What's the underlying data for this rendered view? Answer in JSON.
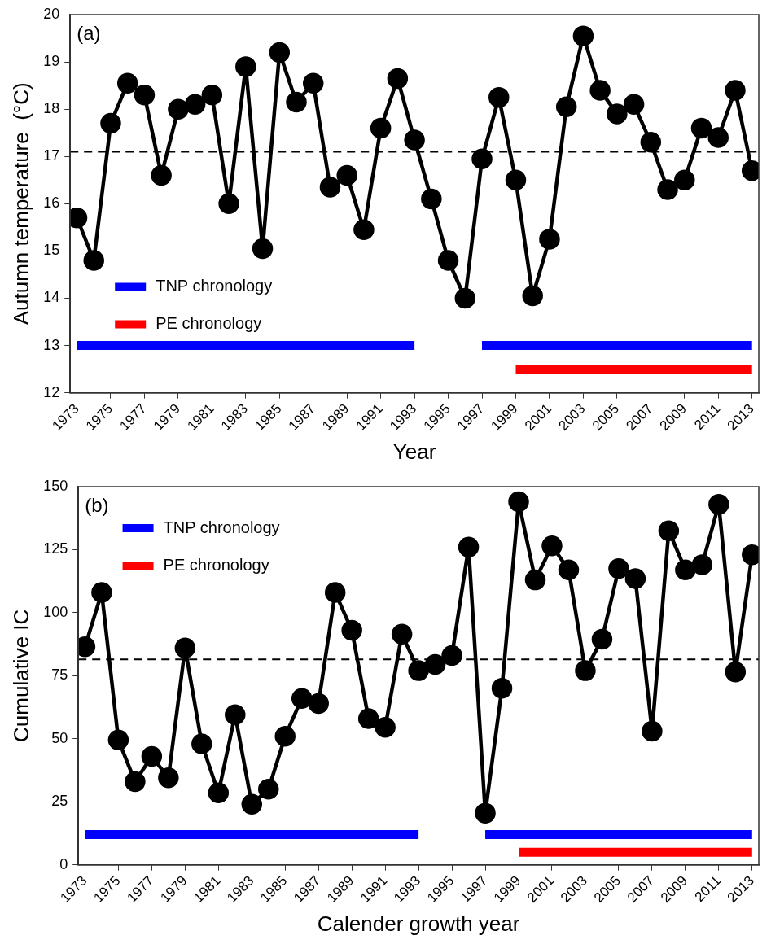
{
  "chart_data": [
    {
      "type": "line",
      "annotations": [
        "(a)"
      ],
      "ylabel": "Autumn temperature  (°C)",
      "xlabel": "Year",
      "marker": "circle",
      "grid": false,
      "legend": "bottom left",
      "x": [
        1973,
        1974,
        1975,
        1976,
        1977,
        1978,
        1979,
        1980,
        1981,
        1982,
        1983,
        1984,
        1985,
        1986,
        1987,
        1988,
        1989,
        1990,
        1991,
        1992,
        1993,
        1994,
        1995,
        1996,
        1997,
        1998,
        1999,
        2000,
        2001,
        2002,
        2003,
        2004,
        2005,
        2006,
        2007,
        2008,
        2009,
        2010,
        2011,
        2012,
        2013
      ],
      "xlim": [
        1972.6,
        2013.4
      ],
      "xticks": [
        1973,
        1975,
        1977,
        1979,
        1981,
        1983,
        1985,
        1987,
        1989,
        1991,
        1993,
        1995,
        1997,
        1999,
        2001,
        2003,
        2005,
        2007,
        2009,
        2011,
        2013
      ],
      "ylim": [
        12,
        20
      ],
      "yticks": [
        12,
        13,
        14,
        15,
        16,
        17,
        18,
        19,
        20
      ],
      "ref_lines": [
        {
          "axis": "y",
          "value": 17.1,
          "color": "#000000",
          "line_style": "dashed"
        }
      ],
      "series": [
        {
          "color": "#000000",
          "values": [
            15.7,
            14.8,
            17.7,
            18.55,
            18.3,
            16.6,
            18.0,
            18.1,
            18.3,
            16.0,
            18.9,
            15.05,
            19.2,
            18.15,
            18.55,
            16.35,
            16.6,
            15.45,
            17.6,
            18.65,
            17.35,
            16.1,
            14.8,
            14.0,
            16.95,
            18.25,
            16.5,
            14.05,
            15.25,
            18.05,
            19.55,
            18.4,
            17.9,
            18.1,
            17.3,
            16.3,
            16.5,
            17.6,
            17.4,
            18.4,
            16.7
          ]
        },
        {
          "type": "line",
          "name": "TNP chronology",
          "color": "#0000ff",
          "marker": "none",
          "x": [
            1973,
            1993,
            1995,
            1997,
            2013
          ],
          "values": [
            13,
            13,
            null,
            13,
            13
          ]
        },
        {
          "type": "line",
          "name": "PE chronology",
          "color": "#ff0000",
          "marker": "none",
          "x": [
            1999,
            2013
          ],
          "values": [
            12.5,
            12.5
          ]
        }
      ]
    },
    {
      "type": "line",
      "annotations": [
        "(b)"
      ],
      "ylabel": "Cumulative IC",
      "xlabel": "Calender growth year",
      "marker": "circle",
      "grid": false,
      "legend": "top left",
      "x": [
        1973,
        1974,
        1975,
        1976,
        1977,
        1978,
        1979,
        1980,
        1981,
        1982,
        1983,
        1984,
        1985,
        1986,
        1987,
        1988,
        1989,
        1990,
        1991,
        1992,
        1993,
        1994,
        1995,
        1996,
        1997,
        1998,
        1999,
        2000,
        2001,
        2002,
        2003,
        2004,
        2005,
        2006,
        2007,
        2008,
        2009,
        2010,
        2011,
        2012,
        2013
      ],
      "xlim": [
        1972.6,
        2013.4
      ],
      "xticks": [
        1973,
        1975,
        1977,
        1979,
        1981,
        1983,
        1985,
        1987,
        1989,
        1991,
        1993,
        1995,
        1997,
        1999,
        2001,
        2003,
        2005,
        2007,
        2009,
        2011,
        2013
      ],
      "ylim": [
        0,
        150
      ],
      "yticks": [
        0,
        25,
        50,
        75,
        100,
        125,
        150
      ],
      "ref_lines": [
        {
          "axis": "y",
          "value": 81.5,
          "color": "#000000",
          "line_style": "dashed"
        }
      ],
      "series": [
        {
          "color": "#000000",
          "values": [
            86.5,
            108,
            49.5,
            33,
            43,
            34.5,
            86,
            48,
            28.5,
            59.5,
            24,
            30,
            51,
            66,
            64,
            108,
            93,
            58,
            54.5,
            91.5,
            77,
            79.5,
            83,
            126,
            20.5,
            70,
            144,
            113,
            126.5,
            117,
            77,
            89.5,
            117.5,
            113.5,
            53,
            132.5,
            117,
            119,
            143,
            76.5,
            123
          ]
        },
        {
          "type": "line",
          "name": "TNP chronology",
          "color": "#0000ff",
          "marker": "none",
          "x": [
            1973,
            1993,
            1995,
            1997,
            2013
          ],
          "values": [
            12,
            12,
            null,
            12,
            12
          ]
        },
        {
          "type": "line",
          "name": "PE chronology",
          "color": "#ff0000",
          "marker": "none",
          "x": [
            1999,
            2013
          ],
          "values": [
            5,
            5
          ]
        }
      ]
    }
  ]
}
